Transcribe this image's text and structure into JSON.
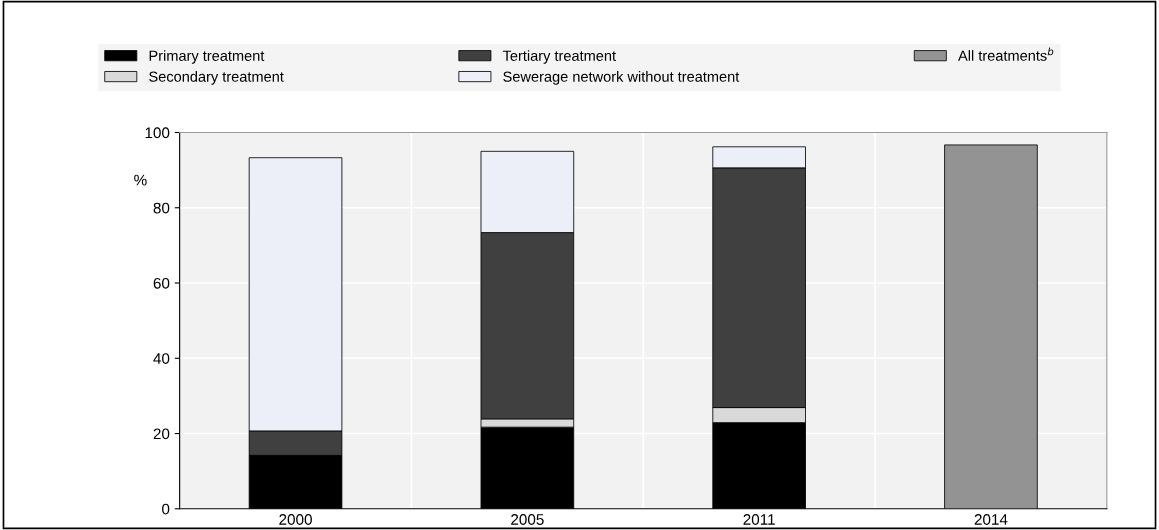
{
  "chart_data": {
    "type": "bar",
    "stacked": true,
    "ylabel": "%",
    "categories": [
      "2000",
      "2005",
      "2011",
      "2014"
    ],
    "series": [
      {
        "name": "Primary treatment",
        "color": "#000000",
        "values": [
          14.2,
          21.7,
          22.9,
          null
        ]
      },
      {
        "name": "Secondary treatment",
        "color": "#d9d9d9",
        "values": [
          null,
          2.2,
          4.0,
          null
        ]
      },
      {
        "name": "Tertiary treatment",
        "color": "#404040",
        "values": [
          6.5,
          49.5,
          63.7,
          null
        ]
      },
      {
        "name": "Sewerage network without treatment",
        "color": "#eceff7",
        "values": [
          72.6,
          21.6,
          5.6,
          null
        ]
      },
      {
        "name": "All treatments$^{b}$",
        "color": "#939393",
        "values": [
          null,
          null,
          null,
          96.7
        ]
      }
    ],
    "ylim": [
      0,
      100
    ],
    "yticks": [
      0,
      20,
      40,
      60,
      80,
      100
    ],
    "grid": "y",
    "legend": "top"
  }
}
